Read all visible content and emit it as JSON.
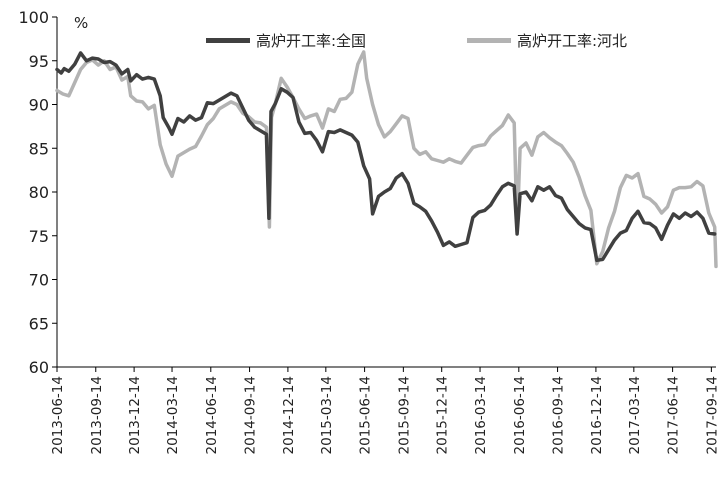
{
  "chart_data": {
    "type": "line",
    "unit_label": "%",
    "ylim": [
      60,
      100
    ],
    "yticks": [
      60,
      65,
      70,
      75,
      80,
      85,
      90,
      95,
      100
    ],
    "x_tick_labels": [
      "2013-06-14",
      "2013-09-14",
      "2013-12-14",
      "2014-03-14",
      "2014-06-14",
      "2014-09-14",
      "2014-12-14",
      "2015-03-14",
      "2015-06-14",
      "2015-09-14",
      "2015-12-14",
      "2016-03-14",
      "2016-06-14",
      "2016-09-14",
      "2016-12-14",
      "2017-03-14",
      "2017-06-14",
      "2017-09-14"
    ],
    "grid": false,
    "legend_position": "top",
    "series": [
      {
        "name": "高炉开工率:全国",
        "color": "#404040",
        "points": [
          [
            "2013-06-14",
            94.0
          ],
          [
            "2013-06-24",
            93.6
          ],
          [
            "2013-07-01",
            94.1
          ],
          [
            "2013-07-12",
            93.8
          ],
          [
            "2013-07-26",
            94.6
          ],
          [
            "2013-08-09",
            95.9
          ],
          [
            "2013-08-23",
            95.0
          ],
          [
            "2013-09-06",
            95.3
          ],
          [
            "2013-09-20",
            95.2
          ],
          [
            "2013-10-04",
            94.8
          ],
          [
            "2013-10-18",
            94.9
          ],
          [
            "2013-11-01",
            94.5
          ],
          [
            "2013-11-15",
            93.5
          ],
          [
            "2013-11-29",
            94.0
          ],
          [
            "2013-12-06",
            92.7
          ],
          [
            "2013-12-20",
            93.4
          ],
          [
            "2014-01-03",
            92.9
          ],
          [
            "2014-01-17",
            93.1
          ],
          [
            "2014-01-31",
            92.9
          ],
          [
            "2014-02-14",
            91.0
          ],
          [
            "2014-02-21",
            88.5
          ],
          [
            "2014-03-07",
            87.3
          ],
          [
            "2014-03-14",
            86.6
          ],
          [
            "2014-03-28",
            88.4
          ],
          [
            "2014-04-11",
            88.0
          ],
          [
            "2014-04-25",
            88.7
          ],
          [
            "2014-05-09",
            88.2
          ],
          [
            "2014-05-23",
            88.5
          ],
          [
            "2014-06-06",
            90.2
          ],
          [
            "2014-06-20",
            90.1
          ],
          [
            "2014-07-04",
            90.5
          ],
          [
            "2014-07-18",
            90.9
          ],
          [
            "2014-08-01",
            91.3
          ],
          [
            "2014-08-15",
            91.0
          ],
          [
            "2014-08-29",
            89.6
          ],
          [
            "2014-09-12",
            88.2
          ],
          [
            "2014-09-26",
            87.4
          ],
          [
            "2014-10-10",
            87.0
          ],
          [
            "2014-10-24",
            86.6
          ],
          [
            "2014-10-30",
            77.0
          ],
          [
            "2014-11-04",
            89.2
          ],
          [
            "2014-11-14",
            90.1
          ],
          [
            "2014-11-28",
            91.8
          ],
          [
            "2014-12-12",
            91.4
          ],
          [
            "2014-12-26",
            90.8
          ],
          [
            "2015-01-09",
            88.0
          ],
          [
            "2015-01-23",
            86.7
          ],
          [
            "2015-02-06",
            86.8
          ],
          [
            "2015-02-20",
            85.9
          ],
          [
            "2015-03-06",
            84.6
          ],
          [
            "2015-03-20",
            86.9
          ],
          [
            "2015-04-03",
            86.8
          ],
          [
            "2015-04-17",
            87.1
          ],
          [
            "2015-05-01",
            86.8
          ],
          [
            "2015-05-15",
            86.5
          ],
          [
            "2015-05-29",
            85.7
          ],
          [
            "2015-06-12",
            83.0
          ],
          [
            "2015-06-26",
            81.5
          ],
          [
            "2015-07-03",
            77.5
          ],
          [
            "2015-07-17",
            79.5
          ],
          [
            "2015-07-31",
            80.0
          ],
          [
            "2015-08-14",
            80.4
          ],
          [
            "2015-08-28",
            81.6
          ],
          [
            "2015-09-11",
            82.1
          ],
          [
            "2015-09-25",
            81.0
          ],
          [
            "2015-10-09",
            78.7
          ],
          [
            "2015-10-23",
            78.3
          ],
          [
            "2015-11-06",
            77.8
          ],
          [
            "2015-11-20",
            76.7
          ],
          [
            "2015-12-04",
            75.4
          ],
          [
            "2015-12-18",
            73.9
          ],
          [
            "2016-01-01",
            74.3
          ],
          [
            "2016-01-15",
            73.8
          ],
          [
            "2016-01-29",
            74.0
          ],
          [
            "2016-02-12",
            74.2
          ],
          [
            "2016-02-26",
            77.1
          ],
          [
            "2016-03-11",
            77.7
          ],
          [
            "2016-03-25",
            77.9
          ],
          [
            "2016-04-08",
            78.5
          ],
          [
            "2016-04-22",
            79.6
          ],
          [
            "2016-05-06",
            80.6
          ],
          [
            "2016-05-20",
            81.0
          ],
          [
            "2016-06-03",
            80.7
          ],
          [
            "2016-06-10",
            75.2
          ],
          [
            "2016-06-17",
            79.8
          ],
          [
            "2016-07-01",
            80.0
          ],
          [
            "2016-07-15",
            79.0
          ],
          [
            "2016-07-29",
            80.6
          ],
          [
            "2016-08-12",
            80.2
          ],
          [
            "2016-08-26",
            80.6
          ],
          [
            "2016-09-09",
            79.6
          ],
          [
            "2016-09-23",
            79.3
          ],
          [
            "2016-10-07",
            78.0
          ],
          [
            "2016-10-21",
            77.2
          ],
          [
            "2016-11-04",
            76.4
          ],
          [
            "2016-11-18",
            75.9
          ],
          [
            "2016-12-02",
            75.7
          ],
          [
            "2016-12-16",
            72.2
          ],
          [
            "2016-12-30",
            72.3
          ],
          [
            "2017-01-13",
            73.4
          ],
          [
            "2017-01-27",
            74.5
          ],
          [
            "2017-02-10",
            75.3
          ],
          [
            "2017-02-24",
            75.6
          ],
          [
            "2017-03-10",
            77.0
          ],
          [
            "2017-03-24",
            77.8
          ],
          [
            "2017-04-07",
            76.5
          ],
          [
            "2017-04-21",
            76.4
          ],
          [
            "2017-05-05",
            75.9
          ],
          [
            "2017-05-19",
            74.6
          ],
          [
            "2017-06-02",
            76.2
          ],
          [
            "2017-06-16",
            77.5
          ],
          [
            "2017-06-30",
            77.0
          ],
          [
            "2017-07-14",
            77.6
          ],
          [
            "2017-07-28",
            77.2
          ],
          [
            "2017-08-11",
            77.7
          ],
          [
            "2017-08-25",
            77.0
          ],
          [
            "2017-09-08",
            75.3
          ],
          [
            "2017-09-22",
            75.2
          ]
        ]
      },
      {
        "name": "高炉开工率:河北",
        "color": "#b3b3b3",
        "points": [
          [
            "2013-06-14",
            91.6
          ],
          [
            "2013-06-28",
            91.2
          ],
          [
            "2013-07-12",
            91.0
          ],
          [
            "2013-07-26",
            92.5
          ],
          [
            "2013-08-09",
            94.0
          ],
          [
            "2013-08-23",
            94.8
          ],
          [
            "2013-09-06",
            95.1
          ],
          [
            "2013-09-20",
            94.5
          ],
          [
            "2013-10-04",
            95.0
          ],
          [
            "2013-10-18",
            94.0
          ],
          [
            "2013-11-01",
            94.3
          ],
          [
            "2013-11-15",
            92.8
          ],
          [
            "2013-11-29",
            93.2
          ],
          [
            "2013-12-06",
            91.0
          ],
          [
            "2013-12-20",
            90.4
          ],
          [
            "2014-01-03",
            90.3
          ],
          [
            "2014-01-17",
            89.5
          ],
          [
            "2014-01-31",
            89.9
          ],
          [
            "2014-02-14",
            85.4
          ],
          [
            "2014-02-28",
            83.2
          ],
          [
            "2014-03-14",
            81.8
          ],
          [
            "2014-03-28",
            84.1
          ],
          [
            "2014-04-11",
            84.5
          ],
          [
            "2014-04-25",
            84.9
          ],
          [
            "2014-05-09",
            85.2
          ],
          [
            "2014-05-23",
            86.4
          ],
          [
            "2014-06-06",
            87.7
          ],
          [
            "2014-06-20",
            88.4
          ],
          [
            "2014-07-04",
            89.5
          ],
          [
            "2014-07-18",
            89.9
          ],
          [
            "2014-08-01",
            90.3
          ],
          [
            "2014-08-15",
            90.0
          ],
          [
            "2014-08-29",
            89.0
          ],
          [
            "2014-09-12",
            88.6
          ],
          [
            "2014-09-26",
            88.0
          ],
          [
            "2014-10-10",
            87.9
          ],
          [
            "2014-10-24",
            87.4
          ],
          [
            "2014-10-31",
            76.0
          ],
          [
            "2014-11-05",
            88.5
          ],
          [
            "2014-11-14",
            90.1
          ],
          [
            "2014-11-28",
            93.0
          ],
          [
            "2014-12-12",
            92.0
          ],
          [
            "2014-12-26",
            90.8
          ],
          [
            "2015-01-09",
            89.5
          ],
          [
            "2015-01-23",
            88.4
          ],
          [
            "2015-02-06",
            88.7
          ],
          [
            "2015-02-20",
            88.9
          ],
          [
            "2015-03-06",
            87.3
          ],
          [
            "2015-03-20",
            89.5
          ],
          [
            "2015-04-03",
            89.2
          ],
          [
            "2015-04-17",
            90.6
          ],
          [
            "2015-05-01",
            90.7
          ],
          [
            "2015-05-15",
            91.4
          ],
          [
            "2015-05-29",
            94.6
          ],
          [
            "2015-06-12",
            96.0
          ],
          [
            "2015-06-19",
            93.0
          ],
          [
            "2015-07-03",
            90.0
          ],
          [
            "2015-07-17",
            87.7
          ],
          [
            "2015-07-31",
            86.3
          ],
          [
            "2015-08-14",
            86.9
          ],
          [
            "2015-08-28",
            87.8
          ],
          [
            "2015-09-11",
            88.7
          ],
          [
            "2015-09-25",
            88.4
          ],
          [
            "2015-10-09",
            85.0
          ],
          [
            "2015-10-23",
            84.3
          ],
          [
            "2015-11-06",
            84.6
          ],
          [
            "2015-11-20",
            83.8
          ],
          [
            "2015-12-04",
            83.6
          ],
          [
            "2015-12-18",
            83.4
          ],
          [
            "2016-01-01",
            83.8
          ],
          [
            "2016-01-15",
            83.5
          ],
          [
            "2016-01-29",
            83.3
          ],
          [
            "2016-02-12",
            84.2
          ],
          [
            "2016-02-26",
            85.1
          ],
          [
            "2016-03-11",
            85.3
          ],
          [
            "2016-03-25",
            85.4
          ],
          [
            "2016-04-08",
            86.4
          ],
          [
            "2016-04-22",
            87.0
          ],
          [
            "2016-05-06",
            87.6
          ],
          [
            "2016-05-20",
            88.8
          ],
          [
            "2016-06-03",
            87.9
          ],
          [
            "2016-06-10",
            75.5
          ],
          [
            "2016-06-17",
            85.0
          ],
          [
            "2016-07-01",
            85.6
          ],
          [
            "2016-07-15",
            84.2
          ],
          [
            "2016-07-29",
            86.3
          ],
          [
            "2016-08-12",
            86.8
          ],
          [
            "2016-08-26",
            86.2
          ],
          [
            "2016-09-09",
            85.7
          ],
          [
            "2016-09-23",
            85.3
          ],
          [
            "2016-10-07",
            84.4
          ],
          [
            "2016-10-21",
            83.4
          ],
          [
            "2016-11-04",
            81.7
          ],
          [
            "2016-11-18",
            79.6
          ],
          [
            "2016-12-02",
            77.9
          ],
          [
            "2016-12-16",
            71.8
          ],
          [
            "2016-12-30",
            73.2
          ],
          [
            "2017-01-13",
            75.9
          ],
          [
            "2017-01-27",
            77.8
          ],
          [
            "2017-02-10",
            80.5
          ],
          [
            "2017-02-24",
            81.9
          ],
          [
            "2017-03-10",
            81.6
          ],
          [
            "2017-03-24",
            82.1
          ],
          [
            "2017-04-07",
            79.5
          ],
          [
            "2017-04-21",
            79.2
          ],
          [
            "2017-05-05",
            78.6
          ],
          [
            "2017-05-19",
            77.6
          ],
          [
            "2017-06-02",
            78.3
          ],
          [
            "2017-06-16",
            80.2
          ],
          [
            "2017-06-30",
            80.5
          ],
          [
            "2017-07-14",
            80.5
          ],
          [
            "2017-07-28",
            80.6
          ],
          [
            "2017-08-11",
            81.2
          ],
          [
            "2017-08-25",
            80.7
          ],
          [
            "2017-09-08",
            77.6
          ],
          [
            "2017-09-22",
            76.0
          ],
          [
            "2017-09-25",
            71.5
          ]
        ]
      }
    ]
  }
}
